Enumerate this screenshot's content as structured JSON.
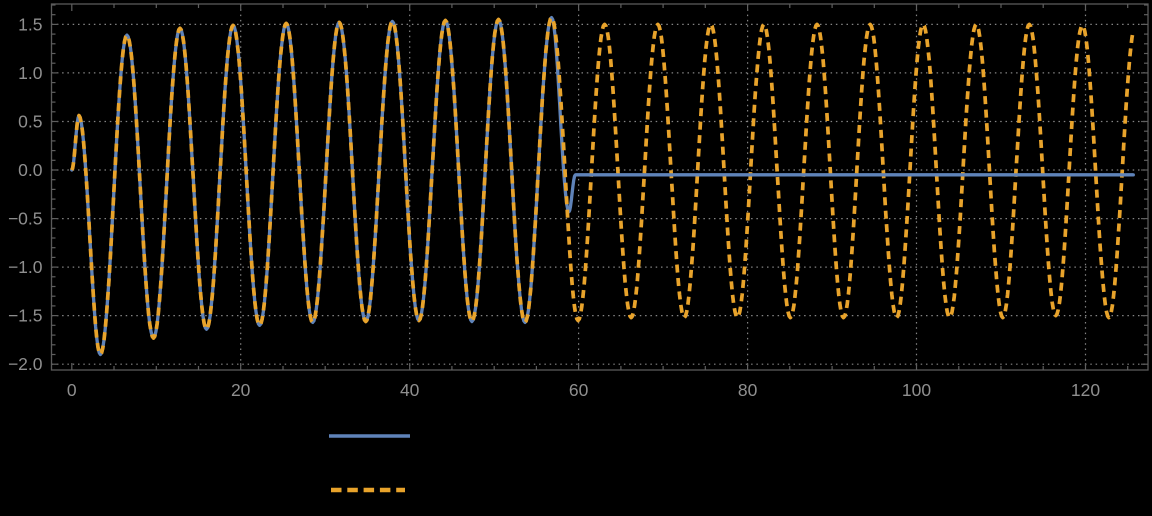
{
  "figure": {
    "background": "#000000",
    "frame_color": "#5a5a5a",
    "tick_color": "#5f5f5f",
    "label_color": "#8f8f8f",
    "grid_color": "#9c9c9c"
  },
  "chart_data": {
    "type": "line",
    "title": "",
    "xlabel": "",
    "ylabel": "",
    "xlim": [
      -2.4,
      127.4
    ],
    "ylim": [
      -2.06,
      1.71
    ],
    "grid": {
      "style": "dotted",
      "x_values": [
        20,
        40,
        60,
        80,
        100,
        120
      ],
      "y_values": [
        -2.0,
        -1.5,
        -1.0,
        -0.5,
        0.0,
        0.5,
        1.0,
        1.5
      ]
    },
    "x_axis": {
      "tick_values": [
        0,
        20,
        40,
        60,
        80,
        100,
        120
      ],
      "tick_labels": [
        "0",
        "20",
        "40",
        "60",
        "80",
        "100",
        "120"
      ],
      "minor_step": 5
    },
    "y_axis": {
      "tick_values": [
        -2.0,
        -1.5,
        -1.0,
        -0.5,
        0.0,
        0.5,
        1.0,
        1.5
      ],
      "tick_labels": [
        "−2.0",
        "−1.5",
        "−1.0",
        "−0.5",
        "0.0",
        "0.5",
        "1.0",
        "1.5"
      ],
      "minor_step": 0.1
    },
    "series": [
      {
        "id": "series-1",
        "style": "solid",
        "color": "#5f83b9",
        "width": 3.3,
        "extrema": [
          [
            0,
            0
          ],
          [
            0.85,
            0.56
          ],
          [
            3.39,
            -1.9
          ],
          [
            6.53,
            1.39
          ],
          [
            9.67,
            -1.73
          ],
          [
            12.81,
            1.46
          ],
          [
            15.95,
            -1.64
          ],
          [
            19.1,
            1.49
          ],
          [
            22.24,
            -1.6
          ],
          [
            25.38,
            1.51
          ],
          [
            28.52,
            -1.57
          ],
          [
            31.66,
            1.52
          ],
          [
            34.8,
            -1.56
          ],
          [
            37.95,
            1.53
          ],
          [
            41.09,
            -1.55
          ],
          [
            44.23,
            1.54
          ],
          [
            47.37,
            -1.56
          ],
          [
            50.51,
            1.55
          ],
          [
            53.65,
            -1.57
          ],
          [
            56.8,
            1.57
          ],
          [
            58.85,
            -0.43
          ],
          [
            59.6,
            -0.05
          ]
        ],
        "flat_to": [
          125.66,
          -0.05
        ]
      },
      {
        "id": "series-2",
        "style": "dashed",
        "color": "#e8a32b",
        "width": 3.7,
        "dash": [
          8,
          5.5
        ],
        "extrema": [
          [
            0,
            0
          ],
          [
            0.85,
            0.56
          ],
          [
            3.39,
            -1.9
          ],
          [
            6.53,
            1.39
          ],
          [
            9.67,
            -1.73
          ],
          [
            12.81,
            1.46
          ],
          [
            15.95,
            -1.64
          ],
          [
            19.1,
            1.49
          ],
          [
            22.24,
            -1.6
          ],
          [
            25.38,
            1.51
          ],
          [
            28.52,
            -1.57
          ],
          [
            31.66,
            1.52
          ],
          [
            34.8,
            -1.56
          ],
          [
            37.95,
            1.53
          ],
          [
            41.09,
            -1.55
          ],
          [
            44.23,
            1.54
          ],
          [
            47.37,
            -1.56
          ],
          [
            50.51,
            1.55
          ],
          [
            53.65,
            -1.57
          ],
          [
            56.8,
            1.57
          ],
          [
            59.94,
            -1.55
          ],
          [
            63.08,
            1.5
          ],
          [
            66.22,
            -1.52
          ],
          [
            69.37,
            1.5
          ],
          [
            72.51,
            -1.52
          ],
          [
            75.65,
            1.5
          ],
          [
            78.79,
            -1.52
          ],
          [
            81.93,
            1.5
          ],
          [
            85.07,
            -1.52
          ],
          [
            88.22,
            1.5
          ],
          [
            91.36,
            -1.52
          ],
          [
            94.5,
            1.5
          ],
          [
            97.64,
            -1.52
          ],
          [
            100.78,
            1.5
          ],
          [
            103.92,
            -1.52
          ],
          [
            107.07,
            1.5
          ],
          [
            110.21,
            -1.52
          ],
          [
            113.35,
            1.5
          ],
          [
            116.49,
            -1.5
          ],
          [
            119.63,
            1.49
          ],
          [
            122.77,
            -1.52
          ],
          [
            125.92,
            1.49
          ]
        ],
        "clip_t": 125.66
      }
    ],
    "legend": {
      "labels_visible": false,
      "entries": [
        {
          "swatch": "solid-line",
          "color": "#5f83b9"
        },
        {
          "swatch": "dashed-line",
          "color": "#e8a32b"
        }
      ]
    }
  }
}
